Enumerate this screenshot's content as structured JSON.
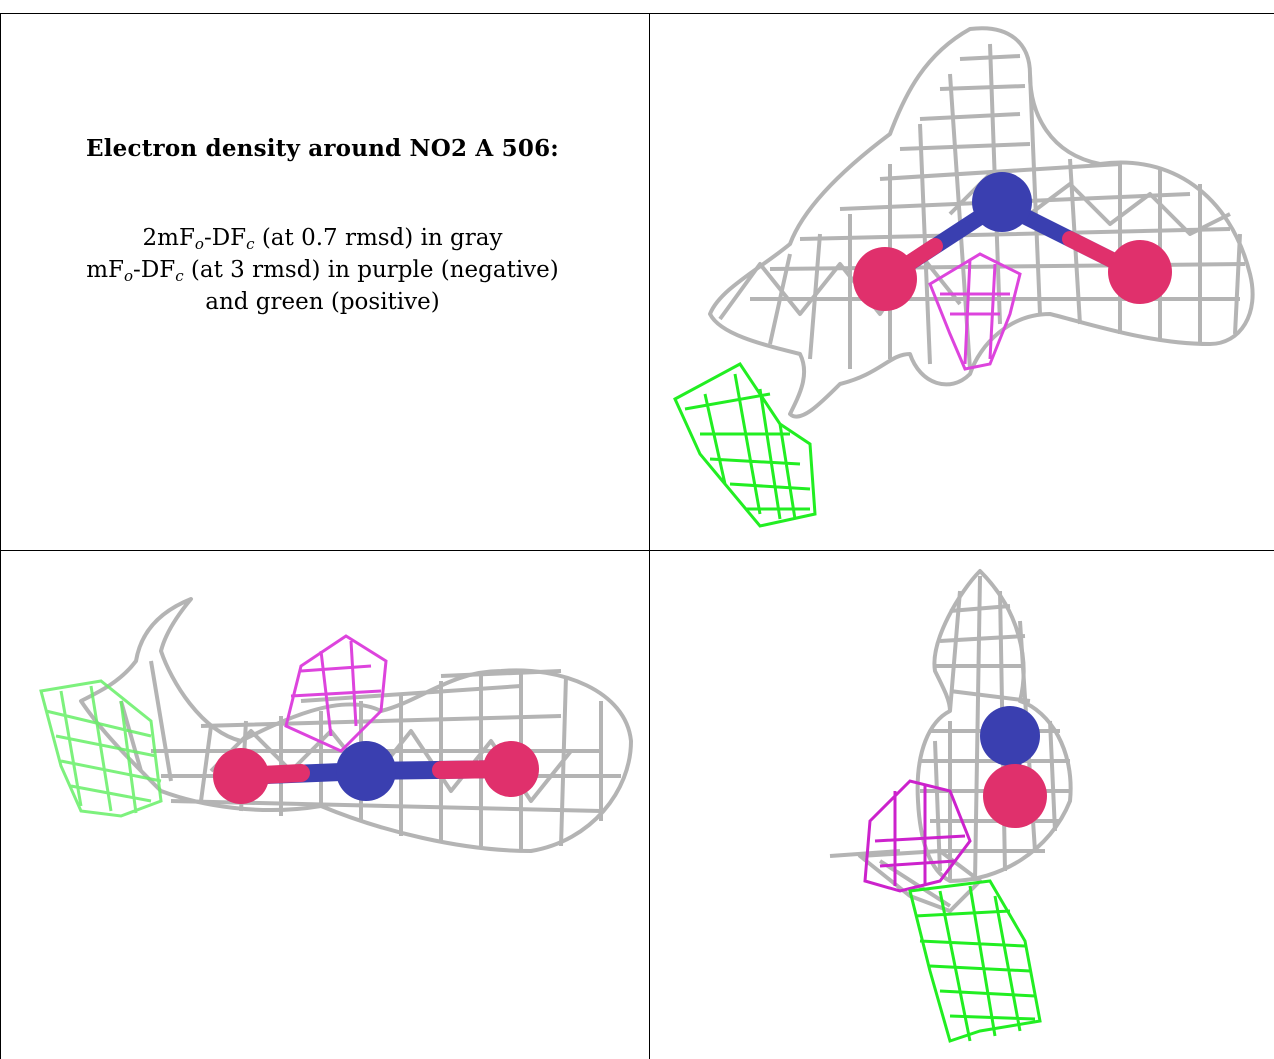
{
  "caption": {
    "title": "Electron density around NO2 A 506:",
    "line1": {
      "pre": "2mF",
      "sub1": "o",
      "mid": "-DF",
      "sub2": "c",
      "post": " (at 0.7 rmsd) in gray"
    },
    "line2": {
      "pre": "mF",
      "sub1": "o",
      "mid": "-DF",
      "sub2": "c",
      "post": " (at 3 rmsd) in purple (negative)"
    },
    "line3": "and green (positive)"
  },
  "colors": {
    "mesh_gray": "#b4b4b4",
    "mesh_purple": "#dd33dd",
    "mesh_green": "#22ee22",
    "atom_nitrogen": "#3a3fb0",
    "atom_oxygen": "#e0306c",
    "border": "#000000"
  },
  "panels": [
    {
      "view": "view-1"
    },
    {
      "view": "view-2"
    },
    {
      "view": "view-3"
    }
  ]
}
